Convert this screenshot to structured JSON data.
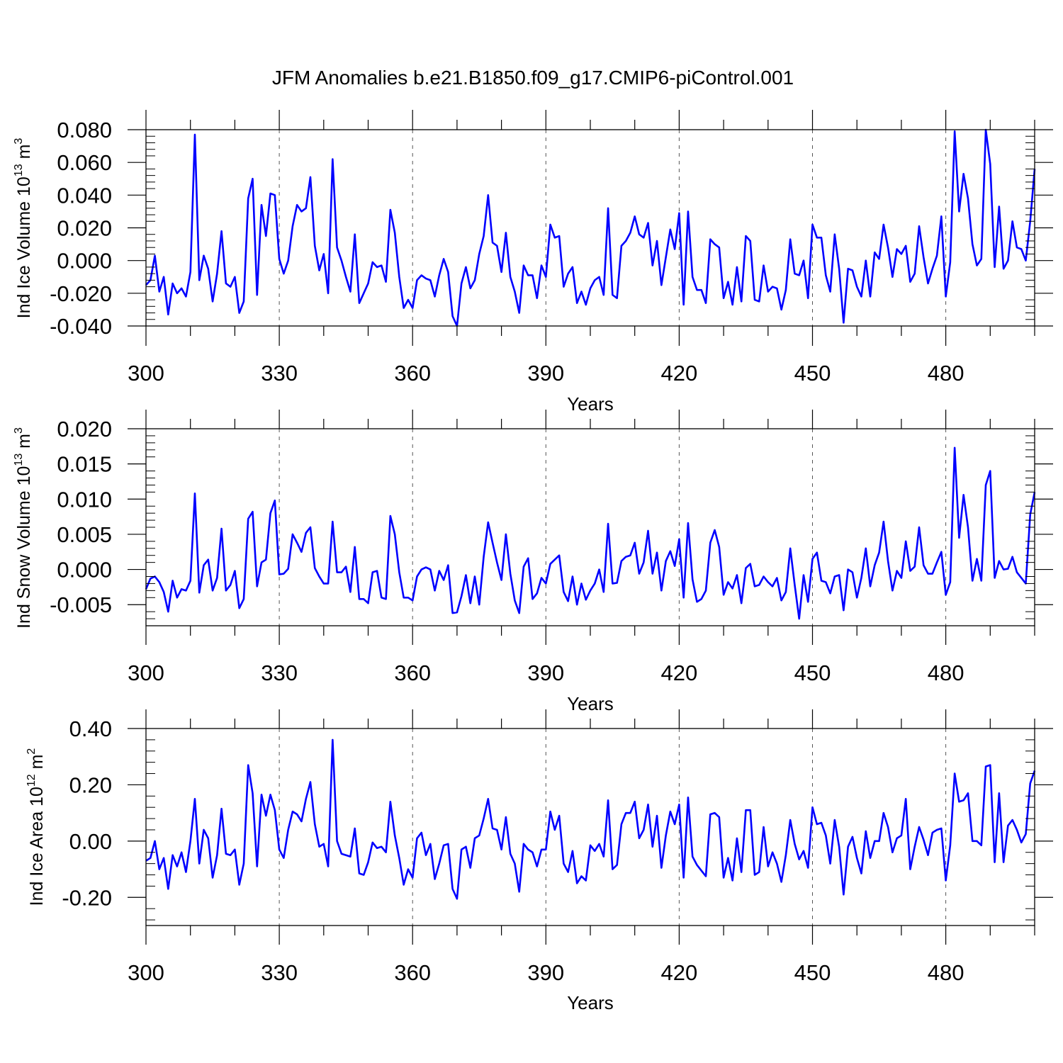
{
  "title": "JFM Anomalies b.e21.B1850.f09_g17.CMIP6-piControl.001",
  "colors": {
    "series": "#0000ff",
    "axis": "#000000",
    "grid": "#555555"
  },
  "chart_data": [
    {
      "type": "line",
      "name": "ice-volume",
      "ylabel_main": "Ind Ice Volume 10",
      "ylabel_exp": "13",
      "ylabel_unit": " m",
      "ylabel_unit_exp": "3",
      "xlabel": "Years",
      "xlim": [
        300,
        500
      ],
      "ylim": [
        -0.04,
        0.08
      ],
      "xticks": [
        300,
        330,
        360,
        390,
        420,
        450,
        480
      ],
      "xtick_labels": [
        "300",
        "330",
        "360",
        "390",
        "420",
        "450",
        "480"
      ],
      "yticks": [
        -0.04,
        -0.02,
        0.0,
        0.02,
        0.04,
        0.06,
        0.08
      ],
      "ytick_labels": [
        "-0.040",
        "-0.020",
        "0.000",
        "0.020",
        "0.040",
        "0.060",
        "0.080"
      ],
      "x_start": 300,
      "values": [
        -0.015,
        -0.012,
        0.003,
        -0.019,
        -0.01,
        -0.033,
        -0.014,
        -0.02,
        -0.017,
        -0.022,
        -0.007,
        0.077,
        -0.012,
        0.003,
        -0.005,
        -0.025,
        -0.008,
        0.018,
        -0.014,
        -0.016,
        -0.01,
        -0.032,
        -0.025,
        0.038,
        0.05,
        -0.021,
        0.034,
        0.015,
        0.041,
        0.04,
        0.001,
        -0.008,
        0.0,
        0.021,
        0.034,
        0.03,
        0.032,
        0.051,
        0.009,
        -0.006,
        0.004,
        -0.02,
        0.062,
        0.008,
        0.0,
        -0.01,
        -0.019,
        0.016,
        -0.026,
        -0.02,
        -0.014,
        -0.001,
        -0.004,
        -0.003,
        -0.013,
        0.031,
        0.017,
        -0.01,
        -0.029,
        -0.024,
        -0.029,
        -0.012,
        -0.009,
        -0.011,
        -0.012,
        -0.022,
        -0.009,
        0.001,
        -0.007,
        -0.034,
        -0.04,
        -0.014,
        -0.004,
        -0.017,
        -0.012,
        0.004,
        0.015,
        0.04,
        0.011,
        0.009,
        -0.007,
        0.017,
        -0.01,
        -0.019,
        -0.032,
        -0.003,
        -0.009,
        -0.009,
        -0.023,
        -0.003,
        -0.01,
        0.022,
        0.014,
        0.015,
        -0.016,
        -0.008,
        -0.004,
        -0.026,
        -0.019,
        -0.027,
        -0.017,
        -0.012,
        -0.01,
        -0.021,
        0.032,
        -0.021,
        -0.023,
        0.009,
        0.012,
        0.017,
        0.027,
        0.016,
        0.014,
        0.023,
        -0.003,
        0.012,
        -0.015,
        0.002,
        0.019,
        0.007,
        0.029,
        -0.027,
        0.03,
        -0.01,
        -0.018,
        -0.018,
        -0.026,
        0.013,
        0.01,
        0.008,
        -0.023,
        -0.013,
        -0.027,
        -0.004,
        -0.025,
        0.015,
        0.012,
        -0.024,
        -0.025,
        -0.003,
        -0.019,
        -0.016,
        -0.017,
        -0.03,
        -0.018,
        0.013,
        -0.008,
        -0.009,
        0.0,
        -0.023,
        0.022,
        0.014,
        0.014,
        -0.009,
        -0.019,
        0.016,
        -0.005,
        -0.038,
        -0.005,
        -0.006,
        -0.016,
        -0.022,
        0.0,
        -0.022,
        0.005,
        0.001,
        0.022,
        0.008,
        -0.01,
        0.007,
        0.004,
        0.009,
        -0.013,
        -0.008,
        0.021,
        0.002,
        -0.014,
        -0.005,
        0.003,
        0.027,
        -0.022,
        -0.001,
        0.079,
        0.03,
        0.053,
        0.038,
        0.01,
        -0.003,
        0.001,
        0.08,
        0.059,
        -0.004,
        0.033,
        -0.005,
        0.0,
        0.024,
        0.008,
        0.007,
        0.0,
        0.024,
        0.056
      ]
    },
    {
      "type": "line",
      "name": "snow-volume",
      "ylabel_main": "Ind Snow Volume 10",
      "ylabel_exp": "13",
      "ylabel_unit": " m",
      "ylabel_unit_exp": "3",
      "xlabel": "Years",
      "xlim": [
        300,
        500
      ],
      "ylim": [
        -0.008,
        0.02
      ],
      "xticks": [
        300,
        330,
        360,
        390,
        420,
        450,
        480
      ],
      "xtick_labels": [
        "300",
        "330",
        "360",
        "390",
        "420",
        "450",
        "480"
      ],
      "yticks": [
        -0.005,
        0.0,
        0.005,
        0.01,
        0.015,
        0.02
      ],
      "ytick_labels": [
        "-0.005",
        "0.000",
        "0.005",
        "0.010",
        "0.015",
        "0.020"
      ],
      "x_start": 300,
      "values": [
        -0.0028,
        -0.0013,
        -0.001,
        -0.0018,
        -0.0032,
        -0.006,
        -0.0016,
        -0.004,
        -0.0028,
        -0.003,
        -0.0016,
        0.0108,
        -0.0033,
        0.0006,
        0.0014,
        -0.003,
        -0.0012,
        0.0058,
        -0.003,
        -0.0022,
        -0.0002,
        -0.0055,
        -0.0042,
        0.0072,
        0.0082,
        -0.0024,
        0.001,
        0.0014,
        0.008,
        0.0098,
        -0.0007,
        -0.0006,
        0.0001,
        0.005,
        0.0038,
        0.0025,
        0.0052,
        0.006,
        0.0002,
        -0.001,
        -0.002,
        -0.002,
        0.0068,
        -0.0004,
        -0.0004,
        0.0004,
        -0.0032,
        0.0032,
        -0.0042,
        -0.0042,
        -0.0048,
        -0.0004,
        -0.0002,
        -0.004,
        -0.0042,
        0.0076,
        0.005,
        -0.0004,
        -0.004,
        -0.004,
        -0.0044,
        -0.001,
        0.0,
        0.0003,
        0.0,
        -0.003,
        -0.0002,
        -0.0015,
        0.0006,
        -0.0062,
        -0.0061,
        -0.0038,
        -0.0008,
        -0.0048,
        -0.001,
        -0.005,
        0.0018,
        0.0067,
        0.0038,
        0.001,
        -0.0015,
        0.005,
        -0.0006,
        -0.0044,
        -0.0062,
        0.0004,
        0.0016,
        -0.0042,
        -0.0034,
        -0.0012,
        -0.002,
        0.0008,
        0.0014,
        0.002,
        -0.0032,
        -0.0045,
        -0.001,
        -0.005,
        -0.002,
        -0.0043,
        -0.003,
        -0.002,
        0.0,
        -0.0032,
        0.0065,
        -0.002,
        -0.0019,
        0.0012,
        0.0018,
        0.002,
        0.0038,
        -0.0006,
        0.001,
        0.0055,
        -0.0006,
        0.0024,
        -0.003,
        0.0012,
        0.0026,
        0.0005,
        0.0043,
        -0.004,
        0.0066,
        -0.0014,
        -0.0046,
        -0.0042,
        -0.003,
        0.0038,
        0.0056,
        0.0032,
        -0.0036,
        -0.0018,
        -0.0027,
        -0.0008,
        -0.0048,
        0.0002,
        0.0008,
        -0.0024,
        -0.0022,
        -0.001,
        -0.0018,
        -0.0024,
        -0.0012,
        -0.0044,
        -0.0032,
        0.003,
        -0.0022,
        -0.007,
        -0.0008,
        -0.0046,
        0.0015,
        0.0024,
        -0.0016,
        -0.0018,
        -0.0034,
        -0.001,
        -0.0008,
        -0.0058,
        0.0,
        -0.0004,
        -0.004,
        -0.0012,
        0.003,
        -0.0024,
        0.0006,
        0.0024,
        0.0068,
        0.0012,
        -0.003,
        -0.0002,
        -0.0012,
        0.004,
        -0.0002,
        0.0004,
        0.006,
        0.0006,
        -0.0006,
        -0.0006,
        0.001,
        0.0025,
        -0.0036,
        -0.0018,
        0.0173,
        0.0045,
        0.0106,
        0.006,
        -0.0016,
        0.0015,
        -0.0016,
        0.012,
        0.014,
        -0.0012,
        0.0012,
        0.0,
        0.0001,
        0.0018,
        -0.0004,
        -0.0012,
        -0.002,
        0.0078,
        0.011
      ]
    },
    {
      "type": "line",
      "name": "ice-area",
      "ylabel_main": "Ind Ice Area 10",
      "ylabel_exp": "12",
      "ylabel_unit": " m",
      "ylabel_unit_exp": "2",
      "xlabel": "Years",
      "xlim": [
        300,
        500
      ],
      "ylim": [
        -0.3,
        0.4
      ],
      "xticks": [
        300,
        330,
        360,
        390,
        420,
        450,
        480
      ],
      "xtick_labels": [
        "300",
        "330",
        "360",
        "390",
        "420",
        "450",
        "480"
      ],
      "yticks": [
        -0.2,
        0.0,
        0.2,
        0.4
      ],
      "ytick_labels": [
        "-0.20",
        "0.00",
        "0.20",
        "0.40"
      ],
      "x_start": 300,
      "values": [
        -0.07,
        -0.06,
        0.0,
        -0.1,
        -0.06,
        -0.17,
        -0.05,
        -0.09,
        -0.04,
        -0.11,
        0.0,
        0.15,
        -0.08,
        0.04,
        0.01,
        -0.13,
        -0.05,
        0.115,
        -0.045,
        -0.05,
        -0.03,
        -0.155,
        -0.08,
        0.27,
        0.17,
        -0.09,
        0.165,
        0.09,
        0.165,
        0.11,
        -0.03,
        -0.06,
        0.04,
        0.105,
        0.095,
        0.07,
        0.15,
        0.21,
        0.06,
        -0.02,
        -0.01,
        -0.09,
        0.36,
        0.0,
        -0.045,
        -0.05,
        -0.055,
        0.045,
        -0.115,
        -0.12,
        -0.075,
        -0.005,
        -0.025,
        -0.02,
        -0.04,
        0.14,
        0.02,
        -0.06,
        -0.155,
        -0.1,
        -0.13,
        0.01,
        0.03,
        -0.05,
        -0.01,
        -0.135,
        -0.08,
        -0.015,
        -0.01,
        -0.17,
        -0.205,
        -0.03,
        -0.02,
        -0.095,
        0.01,
        0.02,
        0.08,
        0.15,
        0.045,
        0.04,
        -0.03,
        0.085,
        -0.045,
        -0.08,
        -0.18,
        -0.01,
        -0.03,
        -0.04,
        -0.09,
        -0.03,
        -0.03,
        0.105,
        0.04,
        0.09,
        -0.08,
        -0.11,
        -0.035,
        -0.15,
        -0.125,
        -0.14,
        -0.015,
        -0.035,
        -0.01,
        -0.055,
        0.145,
        -0.1,
        -0.085,
        0.06,
        0.1,
        0.1,
        0.14,
        0.01,
        0.04,
        0.13,
        -0.02,
        0.09,
        -0.095,
        0.02,
        0.105,
        0.06,
        0.13,
        -0.13,
        0.155,
        -0.055,
        -0.085,
        -0.105,
        -0.125,
        0.095,
        0.1,
        0.085,
        -0.13,
        -0.06,
        -0.14,
        0.01,
        -0.11,
        0.11,
        0.11,
        -0.12,
        -0.11,
        0.05,
        -0.09,
        -0.04,
        -0.08,
        -0.145,
        -0.05,
        0.075,
        -0.01,
        -0.065,
        -0.035,
        -0.095,
        0.12,
        0.06,
        0.065,
        0.02,
        -0.08,
        0.075,
        -0.02,
        -0.19,
        -0.02,
        0.015,
        -0.06,
        -0.115,
        0.035,
        -0.06,
        0.0,
        0.0,
        0.1,
        0.05,
        -0.04,
        0.01,
        0.02,
        0.15,
        -0.1,
        -0.02,
        0.05,
        0.005,
        -0.05,
        0.03,
        0.04,
        0.045,
        -0.14,
        -0.015,
        0.24,
        0.14,
        0.145,
        0.17,
        0.0,
        0.0,
        -0.015,
        0.265,
        0.27,
        -0.075,
        0.17,
        -0.075,
        0.055,
        0.075,
        0.04,
        -0.005,
        0.025,
        0.205,
        0.25
      ]
    }
  ]
}
